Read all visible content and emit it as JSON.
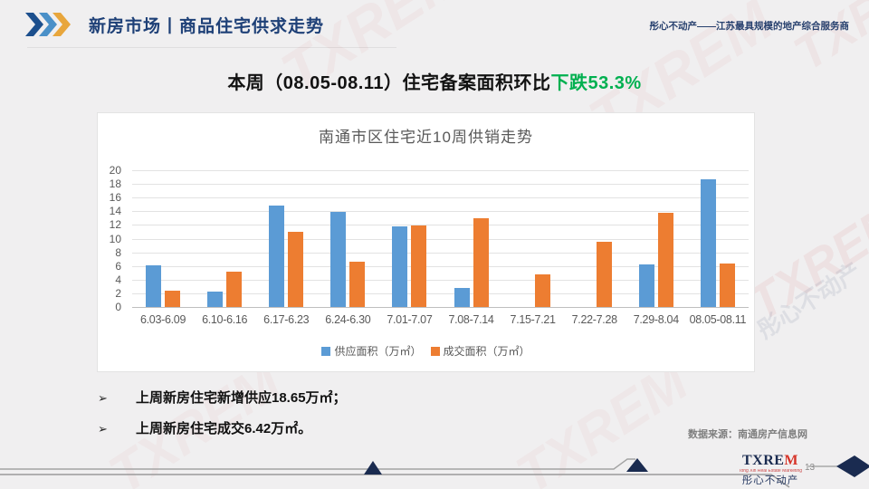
{
  "header": {
    "title": "新房市场丨商品住宅供求走势",
    "tagline": "彤心不动产——江苏最具规模的地产综合服务商",
    "chevron_colors": [
      "#1c4f8d",
      "#4a90c8",
      "#e8a63c"
    ]
  },
  "headline": {
    "prefix": "本周（08.05-08.11）住宅备案面积环比",
    "highlight": "下跌53.3%",
    "highlight_color": "#00b050"
  },
  "chart_data": {
    "type": "bar",
    "title": "南通市区住宅近10周供销走势",
    "categories": [
      "6.03-6.09",
      "6.10-6.16",
      "6.17-6.23",
      "6.24-6.30",
      "7.01-7.07",
      "7.08-7.14",
      "7.15-7.21",
      "7.22-7.28",
      "7.29-8.04",
      "08.05-08.11"
    ],
    "series": [
      {
        "name": "供应面积（万㎡）",
        "color": "#5B9BD5",
        "values": [
          6.1,
          2.2,
          14.9,
          13.9,
          11.8,
          2.8,
          0,
          0,
          6.2,
          18.65
        ]
      },
      {
        "name": "成交面积（万㎡）",
        "color": "#ED7D31",
        "values": [
          2.4,
          5.2,
          11.0,
          6.6,
          11.9,
          13.0,
          4.8,
          9.6,
          13.75,
          6.42
        ]
      }
    ],
    "xlabel": "",
    "ylabel": "",
    "ylim": [
      0,
      20
    ],
    "ytick_step": 2,
    "grid": true,
    "legend_position": "bottom"
  },
  "bullets": [
    {
      "marker": "➢",
      "text": "上周新房住宅新增供应18.65万㎡；"
    },
    {
      "marker": "➢",
      "text": "上周新房住宅成交6.42万㎡。"
    }
  ],
  "source_note": "数据来源：南通房产信息网",
  "footer": {
    "logo_text_main": "TXRE",
    "logo_text_accent": "M",
    "logo_subtext": "Tong Xin Real Estate Marketing",
    "logo_cn": "彤心不动产",
    "page_number": "13"
  },
  "watermark": {
    "text1": "TXREM",
    "text2": "彤心不动产"
  }
}
